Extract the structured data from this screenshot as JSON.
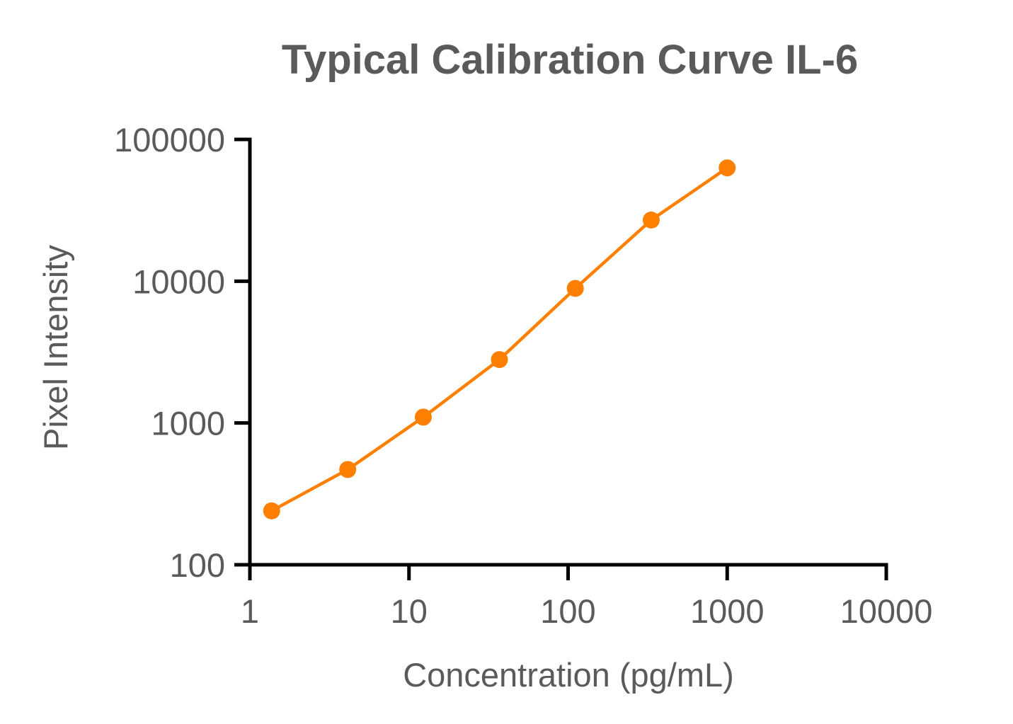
{
  "chart_data": {
    "type": "line",
    "title": "Typical Calibration Curve IL-6",
    "xlabel": "Concentration (pg/mL)",
    "ylabel": "Pixel Intensity",
    "x_scale": "log",
    "y_scale": "log",
    "xlim": [
      1,
      10000
    ],
    "ylim": [
      100,
      100000
    ],
    "x_ticks": [
      1,
      10,
      100,
      1000,
      10000
    ],
    "x_tick_labels": [
      "1",
      "10",
      "100",
      "1000",
      "10000"
    ],
    "y_ticks": [
      100,
      1000,
      10000,
      100000
    ],
    "y_tick_labels": [
      "100",
      "1000",
      "10000",
      "100000"
    ],
    "grid": false,
    "legend": "none",
    "series": [
      {
        "color": "#ff8000",
        "marker": "circle",
        "points": [
          {
            "x": 1.37,
            "y": 240
          },
          {
            "x": 4.12,
            "y": 470
          },
          {
            "x": 12.3,
            "y": 1100
          },
          {
            "x": 37,
            "y": 2800
          },
          {
            "x": 111,
            "y": 8900
          },
          {
            "x": 333,
            "y": 27000
          },
          {
            "x": 1000,
            "y": 63000
          }
        ]
      }
    ]
  }
}
